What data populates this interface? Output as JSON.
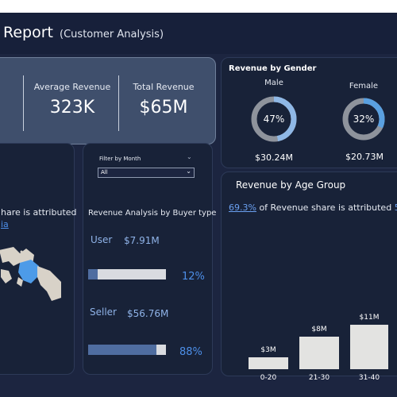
{
  "header": {
    "title": "Report",
    "subtitle": "(Customer Analysis)"
  },
  "kpis": [
    {
      "label": "Average Revenue",
      "value": "323K"
    },
    {
      "label": "Total Revenue",
      "value": "$65M"
    }
  ],
  "gender": {
    "title": "Revenue by Gender",
    "items": [
      {
        "label": "Male",
        "percent_text": "47%",
        "percent": 47,
        "value": "$30.24M"
      },
      {
        "label": "Female",
        "percent_text": "32%",
        "percent": 32,
        "value": "$20.73M"
      }
    ]
  },
  "map": {
    "text_line1": "hare is attributed",
    "text_line2": "ia"
  },
  "buyer": {
    "filter_label": "Filter by Month",
    "filter_value": "All",
    "title": "Revenue Analysis by Buyer type",
    "rows": [
      {
        "label": "User",
        "value": "$7.91M",
        "percent_text": "12%",
        "percent": 12
      },
      {
        "label": "Seller",
        "value": "$56.76M",
        "percent_text": "88%",
        "percent": 88
      }
    ]
  },
  "age": {
    "title": "Revenue by Age Group",
    "share_pct": "69.3%",
    "share_text": " of Revenue share is attributed ",
    "share_suffix": "5",
    "chart_data": {
      "type": "bar",
      "categories": [
        "0-20",
        "21-30",
        "31-40"
      ],
      "values": [
        3,
        8,
        11
      ],
      "data_labels": [
        "$3M",
        "$8M",
        "$11M"
      ]
    }
  },
  "colors": {
    "background": "#1c2540",
    "accent": "#4d8fe8",
    "male_fill": "#8fb8e6",
    "female_fill": "#5aa0e0",
    "donut_rest": "#8e939c"
  }
}
